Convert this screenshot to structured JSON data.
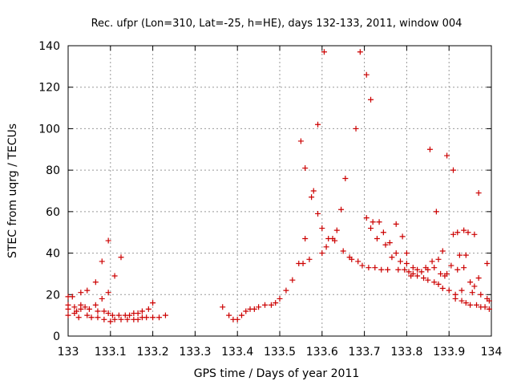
{
  "chart_data": {
    "type": "scatter",
    "title": "Rec. ufpr (Lon=310, Lat=-25, h=HE), days 132-133, 2011, window 004",
    "xlabel": "GPS time / Days of year 2011",
    "ylabel": "STEC from uqrg / TECUs",
    "xlim": [
      133,
      134
    ],
    "ylim": [
      0,
      140
    ],
    "x_ticks": [
      "133",
      "133.1",
      "133.2",
      "133.3",
      "133.4",
      "133.5",
      "133.6",
      "133.7",
      "133.8",
      "133.9",
      "134"
    ],
    "y_ticks": [
      "0",
      "20",
      "40",
      "60",
      "80",
      "100",
      "120",
      "140"
    ],
    "grid": true,
    "marker": "+",
    "color": "#cc0000",
    "points": [
      [
        133.0,
        19
      ],
      [
        133.0,
        15
      ],
      [
        133.0,
        13
      ],
      [
        133.0,
        10
      ],
      [
        133.01,
        19
      ],
      [
        133.015,
        14
      ],
      [
        133.015,
        11
      ],
      [
        133.02,
        12
      ],
      [
        133.025,
        9
      ],
      [
        133.03,
        21
      ],
      [
        133.03,
        15
      ],
      [
        133.03,
        13
      ],
      [
        133.04,
        14
      ],
      [
        133.045,
        22
      ],
      [
        133.045,
        10
      ],
      [
        133.05,
        13
      ],
      [
        133.055,
        9
      ],
      [
        133.065,
        26
      ],
      [
        133.065,
        15
      ],
      [
        133.07,
        12
      ],
      [
        133.07,
        9
      ],
      [
        133.08,
        18
      ],
      [
        133.08,
        36
      ],
      [
        133.085,
        12
      ],
      [
        133.085,
        8
      ],
      [
        133.095,
        46
      ],
      [
        133.095,
        11
      ],
      [
        133.095,
        21
      ],
      [
        133.1,
        7
      ],
      [
        133.105,
        10
      ],
      [
        133.11,
        29
      ],
      [
        133.11,
        8
      ],
      [
        133.12,
        10
      ],
      [
        133.125,
        38
      ],
      [
        133.125,
        8
      ],
      [
        133.135,
        10
      ],
      [
        133.14,
        8
      ],
      [
        133.145,
        10
      ],
      [
        133.155,
        8
      ],
      [
        133.155,
        11
      ],
      [
        133.165,
        8
      ],
      [
        133.165,
        11
      ],
      [
        133.175,
        9
      ],
      [
        133.175,
        12
      ],
      [
        133.185,
        9
      ],
      [
        133.19,
        13
      ],
      [
        133.2,
        9
      ],
      [
        133.2,
        16
      ],
      [
        133.215,
        9
      ],
      [
        133.23,
        10
      ],
      [
        133.365,
        14
      ],
      [
        133.38,
        10
      ],
      [
        133.39,
        8
      ],
      [
        133.4,
        8
      ],
      [
        133.41,
        10
      ],
      [
        133.42,
        12
      ],
      [
        133.43,
        13
      ],
      [
        133.44,
        13
      ],
      [
        133.45,
        14
      ],
      [
        133.465,
        15
      ],
      [
        133.48,
        15
      ],
      [
        133.49,
        16
      ],
      [
        133.5,
        18
      ],
      [
        133.515,
        22
      ],
      [
        133.53,
        27
      ],
      [
        133.545,
        35
      ],
      [
        133.55,
        94
      ],
      [
        133.555,
        35
      ],
      [
        133.56,
        81
      ],
      [
        133.56,
        47
      ],
      [
        133.57,
        37
      ],
      [
        133.575,
        67
      ],
      [
        133.58,
        70
      ],
      [
        133.59,
        59
      ],
      [
        133.59,
        102
      ],
      [
        133.6,
        52
      ],
      [
        133.6,
        40
      ],
      [
        133.605,
        137
      ],
      [
        133.61,
        43
      ],
      [
        133.615,
        47
      ],
      [
        133.625,
        47
      ],
      [
        133.63,
        46
      ],
      [
        133.635,
        51
      ],
      [
        133.645,
        61
      ],
      [
        133.65,
        41
      ],
      [
        133.655,
        76
      ],
      [
        133.665,
        38
      ],
      [
        133.67,
        37
      ],
      [
        133.68,
        100
      ],
      [
        133.685,
        36
      ],
      [
        133.69,
        137
      ],
      [
        133.695,
        34
      ],
      [
        133.705,
        126
      ],
      [
        133.705,
        57
      ],
      [
        133.71,
        33
      ],
      [
        133.715,
        114
      ],
      [
        133.715,
        52
      ],
      [
        133.72,
        55
      ],
      [
        133.725,
        33
      ],
      [
        133.73,
        47
      ],
      [
        133.735,
        55
      ],
      [
        133.74,
        32
      ],
      [
        133.745,
        50
      ],
      [
        133.75,
        44
      ],
      [
        133.755,
        32
      ],
      [
        133.76,
        45
      ],
      [
        133.765,
        38
      ],
      [
        133.775,
        54
      ],
      [
        133.775,
        40
      ],
      [
        133.78,
        32
      ],
      [
        133.785,
        36
      ],
      [
        133.79,
        48
      ],
      [
        133.795,
        32
      ],
      [
        133.8,
        35
      ],
      [
        133.8,
        40
      ],
      [
        133.805,
        31
      ],
      [
        133.81,
        29
      ],
      [
        133.815,
        33
      ],
      [
        133.815,
        30
      ],
      [
        133.825,
        32
      ],
      [
        133.825,
        29
      ],
      [
        133.835,
        31
      ],
      [
        133.84,
        28
      ],
      [
        133.845,
        33
      ],
      [
        133.85,
        32
      ],
      [
        133.85,
        27
      ],
      [
        133.855,
        90
      ],
      [
        133.86,
        36
      ],
      [
        133.865,
        33
      ],
      [
        133.865,
        26
      ],
      [
        133.87,
        60
      ],
      [
        133.875,
        37
      ],
      [
        133.875,
        25
      ],
      [
        133.88,
        30
      ],
      [
        133.885,
        41
      ],
      [
        133.885,
        23
      ],
      [
        133.89,
        29
      ],
      [
        133.895,
        87
      ],
      [
        133.895,
        30
      ],
      [
        133.9,
        22
      ],
      [
        133.905,
        34
      ],
      [
        133.91,
        80
      ],
      [
        133.91,
        49
      ],
      [
        133.915,
        18
      ],
      [
        133.915,
        20
      ],
      [
        133.92,
        32
      ],
      [
        133.92,
        50
      ],
      [
        133.925,
        39
      ],
      [
        133.93,
        17
      ],
      [
        133.93,
        22
      ],
      [
        133.935,
        51
      ],
      [
        133.935,
        33
      ],
      [
        133.94,
        16
      ],
      [
        133.94,
        39
      ],
      [
        133.945,
        50
      ],
      [
        133.95,
        26
      ],
      [
        133.95,
        15
      ],
      [
        133.955,
        21
      ],
      [
        133.96,
        24
      ],
      [
        133.96,
        49
      ],
      [
        133.965,
        15
      ],
      [
        133.97,
        69
      ],
      [
        133.97,
        28
      ],
      [
        133.975,
        14
      ],
      [
        133.975,
        20
      ],
      [
        133.985,
        14
      ],
      [
        133.99,
        18
      ],
      [
        133.99,
        35
      ],
      [
        133.995,
        13
      ],
      [
        133.995,
        17
      ]
    ]
  }
}
